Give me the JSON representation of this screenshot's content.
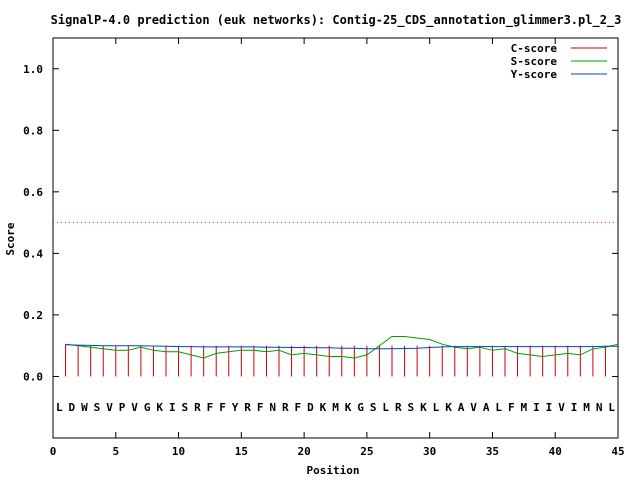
{
  "chart_data": {
    "type": "line",
    "title": "SignalP-4.0 prediction (euk networks): Contig-25_CDS_annotation_glimmer3.pl_2_3",
    "xlabel": "Position",
    "ylabel": "Score",
    "xlim": [
      0,
      45
    ],
    "ylim": [
      -0.2,
      1.1
    ],
    "x_ticks": [
      0,
      5,
      10,
      15,
      20,
      25,
      30,
      35,
      40,
      45
    ],
    "x_tick_labels": [
      "0",
      "5",
      "10",
      "15",
      "20",
      "25",
      "30",
      "35",
      "40",
      "45"
    ],
    "y_ticks": [
      0.0,
      0.2,
      0.4,
      0.6,
      0.8,
      1.0
    ],
    "y_tick_labels": [
      "0.0",
      "0.2",
      "0.4",
      "0.6",
      "0.8",
      "1.0"
    ],
    "grid": false,
    "legend_position": "top-right",
    "threshold": {
      "value": 0.5,
      "color": "#ff00ff"
    },
    "residues": [
      "L",
      "D",
      "W",
      "S",
      "V",
      "P",
      "V",
      "G",
      "K",
      "I",
      "S",
      "R",
      "F",
      "F",
      "Y",
      "R",
      "F",
      "N",
      "R",
      "F",
      "D",
      "K",
      "M",
      "K",
      "G",
      "S",
      "L",
      "R",
      "S",
      "K",
      "L",
      "K",
      "A",
      "V",
      "A",
      "L",
      "F",
      "M",
      "I",
      "I",
      "V",
      "I",
      "M",
      "N",
      "L"
    ],
    "series": [
      {
        "name": "C-score",
        "style": "impulses",
        "color": "#cc0000",
        "x": [
          1,
          2,
          3,
          4,
          5,
          6,
          7,
          8,
          9,
          10,
          11,
          12,
          13,
          14,
          15,
          16,
          17,
          18,
          19,
          20,
          21,
          22,
          23,
          24,
          25,
          26,
          27,
          28,
          29,
          30,
          31,
          32,
          33,
          34,
          35,
          36,
          37,
          38,
          39,
          40,
          41,
          42,
          43,
          44
        ],
        "values": [
          0.105,
          0.1,
          0.1,
          0.1,
          0.1,
          0.1,
          0.1,
          0.1,
          0.1,
          0.1,
          0.1,
          0.1,
          0.1,
          0.1,
          0.1,
          0.1,
          0.1,
          0.1,
          0.1,
          0.1,
          0.1,
          0.1,
          0.1,
          0.1,
          0.1,
          0.1,
          0.1,
          0.1,
          0.1,
          0.1,
          0.1,
          0.1,
          0.1,
          0.1,
          0.1,
          0.1,
          0.1,
          0.1,
          0.1,
          0.1,
          0.1,
          0.1,
          0.1,
          0.1
        ]
      },
      {
        "name": "S-score",
        "style": "line",
        "color": "#00a000",
        "x": [
          1,
          2,
          3,
          4,
          5,
          6,
          7,
          8,
          9,
          10,
          11,
          12,
          13,
          14,
          15,
          16,
          17,
          18,
          19,
          20,
          21,
          22,
          23,
          24,
          25,
          26,
          27,
          28,
          29,
          30,
          31,
          32,
          33,
          34,
          35,
          36,
          37,
          38,
          39,
          40,
          41,
          42,
          43,
          44,
          45
        ],
        "values": [
          0.105,
          0.1,
          0.095,
          0.09,
          0.085,
          0.085,
          0.095,
          0.085,
          0.08,
          0.08,
          0.07,
          0.06,
          0.075,
          0.08,
          0.085,
          0.085,
          0.08,
          0.085,
          0.07,
          0.075,
          0.07,
          0.065,
          0.065,
          0.06,
          0.07,
          0.1,
          0.13,
          0.13,
          0.125,
          0.12,
          0.105,
          0.095,
          0.09,
          0.095,
          0.085,
          0.09,
          0.075,
          0.07,
          0.065,
          0.07,
          0.075,
          0.07,
          0.09,
          0.095,
          0.105
        ]
      },
      {
        "name": "Y-score",
        "style": "line",
        "color": "#0044cc",
        "x": [
          1,
          2,
          3,
          4,
          5,
          6,
          7,
          8,
          9,
          10,
          11,
          12,
          13,
          14,
          15,
          16,
          17,
          18,
          19,
          20,
          21,
          22,
          23,
          24,
          25,
          26,
          27,
          28,
          29,
          30,
          31,
          32,
          33,
          34,
          35,
          36,
          37,
          38,
          39,
          40,
          41,
          42,
          43,
          44,
          45
        ],
        "values": [
          0.103,
          0.102,
          0.101,
          0.1,
          0.1,
          0.1,
          0.1,
          0.099,
          0.098,
          0.097,
          0.097,
          0.096,
          0.096,
          0.096,
          0.096,
          0.096,
          0.095,
          0.095,
          0.094,
          0.094,
          0.093,
          0.093,
          0.092,
          0.092,
          0.09,
          0.09,
          0.09,
          0.091,
          0.092,
          0.094,
          0.096,
          0.097,
          0.097,
          0.097,
          0.097,
          0.097,
          0.097,
          0.097,
          0.097,
          0.097,
          0.097,
          0.097,
          0.097,
          0.098,
          0.098
        ]
      }
    ]
  }
}
